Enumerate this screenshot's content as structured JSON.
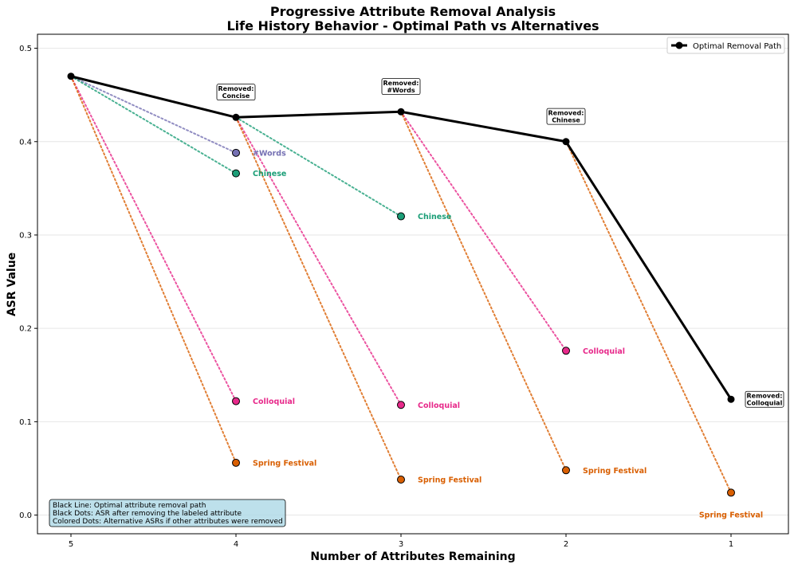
{
  "chart_data": {
    "type": "line",
    "title": "Progressive Attribute Removal Analysis",
    "subtitle": "Life History Behavior - Optimal Path vs Alternatives",
    "xlabel": "Number of Attributes Remaining",
    "ylabel": "ASR Value",
    "x_categories": [
      "5",
      "4",
      "3",
      "2",
      "1"
    ],
    "y_ticks": [
      "0.0",
      "0.1",
      "0.2",
      "0.3",
      "0.4",
      "0.5"
    ],
    "ylim": [
      -0.02,
      0.515
    ],
    "grid": "horizontal",
    "legend": {
      "label": "Optimal Removal Path",
      "position": "top-right"
    },
    "optimal_path": {
      "name": "Optimal Removal Path",
      "color": "#000000",
      "points": [
        {
          "x": 5,
          "y": 0.47
        },
        {
          "x": 4,
          "y": 0.426
        },
        {
          "x": 3,
          "y": 0.432
        },
        {
          "x": 2,
          "y": 0.4
        },
        {
          "x": 1,
          "y": 0.124
        }
      ]
    },
    "removed_annotations": [
      {
        "x": 4,
        "y_anchor": 0.453,
        "line1": "Removed:",
        "line2": "Concise"
      },
      {
        "x": 3,
        "y_anchor": 0.459,
        "line1": "Removed:",
        "line2": "#Words"
      },
      {
        "x": 2,
        "y_anchor": 0.427,
        "line1": "Removed:",
        "line2": "Chinese"
      },
      {
        "x": 1,
        "y_anchor": 0.124,
        "line1": "Removed:",
        "line2": "Colloquial",
        "side": "right"
      }
    ],
    "alternatives": [
      {
        "from_x": 5,
        "from_y": 0.47,
        "x": 4,
        "y": 0.388,
        "label": "#Words",
        "color": "#7570b3"
      },
      {
        "from_x": 5,
        "from_y": 0.47,
        "x": 4,
        "y": 0.366,
        "label": "Chinese",
        "color": "#1b9e77"
      },
      {
        "from_x": 5,
        "from_y": 0.47,
        "x": 4,
        "y": 0.122,
        "label": "Colloquial",
        "color": "#e7298a"
      },
      {
        "from_x": 5,
        "from_y": 0.47,
        "x": 4,
        "y": 0.056,
        "label": "Spring Festival",
        "color": "#d95f02"
      },
      {
        "from_x": 4,
        "from_y": 0.426,
        "x": 3,
        "y": 0.32,
        "label": "Chinese",
        "color": "#1b9e77"
      },
      {
        "from_x": 4,
        "from_y": 0.426,
        "x": 3,
        "y": 0.118,
        "label": "Colloquial",
        "color": "#e7298a"
      },
      {
        "from_x": 4,
        "from_y": 0.426,
        "x": 3,
        "y": 0.038,
        "label": "Spring Festival",
        "color": "#d95f02"
      },
      {
        "from_x": 3,
        "from_y": 0.432,
        "x": 2,
        "y": 0.176,
        "label": "Colloquial",
        "color": "#e7298a"
      },
      {
        "from_x": 3,
        "from_y": 0.432,
        "x": 2,
        "y": 0.048,
        "label": "Spring Festival",
        "color": "#d95f02"
      },
      {
        "from_x": 2,
        "from_y": 0.4,
        "x": 1,
        "y": 0.024,
        "label": "Spring Festival",
        "color": "#d95f02",
        "label_position": "below"
      }
    ],
    "note_lines": [
      "Black Line: Optimal attribute removal path",
      "Black Dots: ASR after removing the labeled attribute",
      "Colored Dots: Alternative ASRs if other attributes were removed"
    ]
  }
}
